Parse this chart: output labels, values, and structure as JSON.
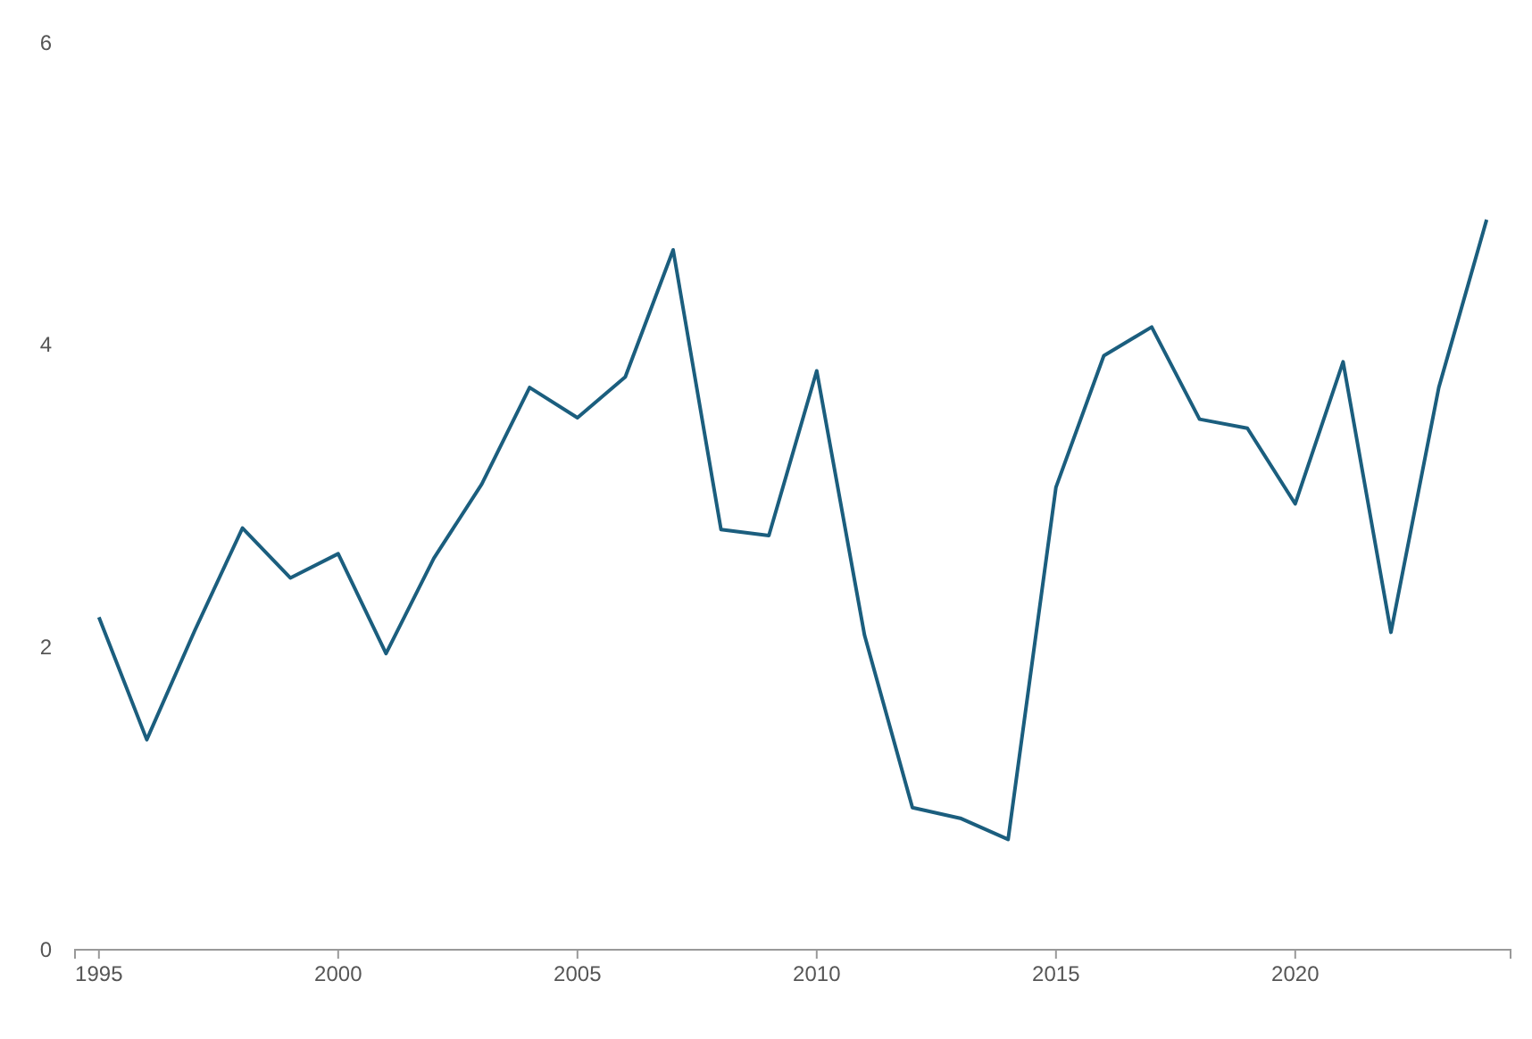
{
  "chart_data": {
    "type": "line",
    "x": [
      1995,
      1996,
      1997,
      1998,
      1999,
      2000,
      2001,
      2002,
      2003,
      2004,
      2005,
      2006,
      2007,
      2008,
      2009,
      2010,
      2011,
      2012,
      2013,
      2014,
      2015,
      2016,
      2017,
      2018,
      2019,
      2020,
      2021,
      2022,
      2023,
      2024
    ],
    "series": [
      {
        "color": "#1b5e7e",
        "values": [
          2.2,
          1.39,
          2.11,
          2.79,
          2.46,
          2.62,
          1.96,
          2.59,
          3.08,
          3.72,
          3.52,
          3.79,
          4.63,
          2.78,
          2.74,
          3.83,
          2.08,
          0.94,
          0.87,
          0.73,
          3.06,
          3.93,
          4.12,
          3.51,
          3.45,
          2.95,
          3.89,
          2.1,
          3.72,
          4.83
        ]
      }
    ],
    "xlim": [
      1994.5,
      2024.5
    ],
    "xticks": [
      1995,
      2000,
      2005,
      2010,
      2015,
      2020
    ],
    "ylim": [
      0,
      6
    ],
    "yticks": [
      0,
      2,
      4,
      6
    ],
    "grid": false,
    "marker": "none",
    "line_style": "solid"
  }
}
